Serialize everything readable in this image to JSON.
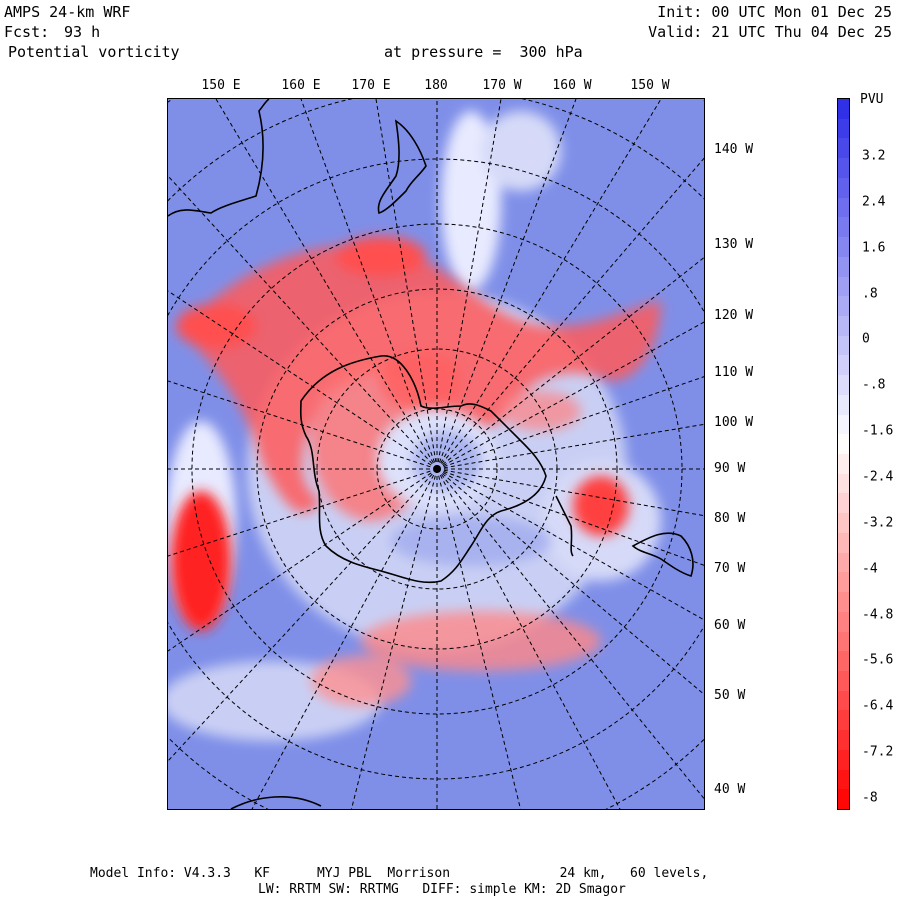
{
  "header": {
    "model": "AMPS 24-km WRF",
    "forecast_label": "Fcst:",
    "forecast_hours": "93 h",
    "field": "Potential vorticity",
    "level": "at pressure =  300 hPa",
    "init": "Init: 00 UTC Mon 01 Dec 25",
    "valid": "Valid: 21 UTC Thu 04 Dec 25"
  },
  "longitude_top": [
    "150 E",
    "160 E",
    "170 E",
    "180",
    "170 W",
    "160 W",
    "150 W"
  ],
  "longitude_right": [
    "140 W",
    "130 W",
    "120 W",
    "110 W",
    "100 W",
    "90 W",
    "80 W",
    "70 W",
    "60 W",
    "50 W",
    "40 W"
  ],
  "colorbar": {
    "unit": "PVU",
    "tick_labels": [
      "3.2",
      "2.4",
      "1.6",
      ".8",
      "0",
      "-.8",
      "-1.6",
      "-2.4",
      "-3.2",
      "-4",
      "-4.8",
      "-5.6",
      "-6.4",
      "-7.2",
      "-8"
    ],
    "max_color": "#2a2ae6",
    "mid_color": "#ffffff",
    "min_color": "#ff0000"
  },
  "footer": {
    "line1": "Model Info: V4.3.3   KF      MYJ PBL  Morrison              24 km,   60 levels,",
    "line2": "LW: RRTM SW: RRTMG   DIFF: simple KM: 2D Smagor"
  }
}
